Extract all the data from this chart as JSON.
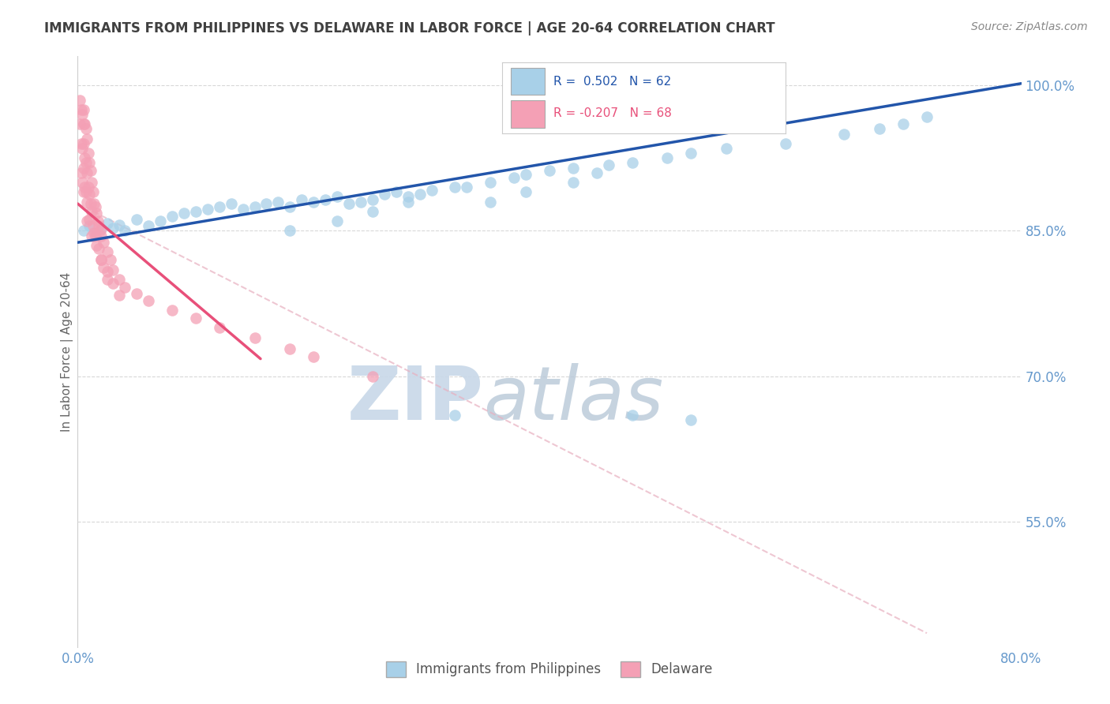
{
  "title": "IMMIGRANTS FROM PHILIPPINES VS DELAWARE IN LABOR FORCE | AGE 20-64 CORRELATION CHART",
  "source_text": "Source: ZipAtlas.com",
  "ylabel": "In Labor Force | Age 20-64",
  "x_min": 0.0,
  "x_max": 0.8,
  "y_min": 0.42,
  "y_max": 1.03,
  "x_ticks": [
    0.0,
    0.1,
    0.2,
    0.3,
    0.4,
    0.5,
    0.6,
    0.7,
    0.8
  ],
  "y_ticks": [
    0.55,
    0.7,
    0.85,
    1.0
  ],
  "y_tick_labels": [
    "55.0%",
    "70.0%",
    "85.0%",
    "100.0%"
  ],
  "blue_color": "#a8d0e8",
  "pink_color": "#f4a0b5",
  "blue_line_color": "#2255aa",
  "pink_line_color": "#e8507a",
  "dashed_line_color": "#e8b0c0",
  "watermark_color": "#c8d8e8",
  "title_color": "#404040",
  "axis_color": "#6699CC",
  "blue_scatter_x": [
    0.005,
    0.01,
    0.015,
    0.02,
    0.025,
    0.03,
    0.035,
    0.04,
    0.05,
    0.06,
    0.07,
    0.08,
    0.09,
    0.1,
    0.11,
    0.12,
    0.13,
    0.14,
    0.15,
    0.16,
    0.17,
    0.18,
    0.19,
    0.2,
    0.21,
    0.22,
    0.23,
    0.24,
    0.25,
    0.26,
    0.27,
    0.28,
    0.29,
    0.3,
    0.32,
    0.33,
    0.35,
    0.37,
    0.38,
    0.4,
    0.42,
    0.44,
    0.45,
    0.47,
    0.5,
    0.52,
    0.55,
    0.6,
    0.65,
    0.68,
    0.7,
    0.72,
    0.18,
    0.22,
    0.25,
    0.28,
    0.32,
    0.35,
    0.38,
    0.42,
    0.47,
    0.52
  ],
  "blue_scatter_y": [
    0.85,
    0.855,
    0.848,
    0.852,
    0.858,
    0.853,
    0.856,
    0.85,
    0.862,
    0.855,
    0.86,
    0.865,
    0.868,
    0.87,
    0.872,
    0.875,
    0.878,
    0.872,
    0.875,
    0.878,
    0.88,
    0.875,
    0.882,
    0.88,
    0.882,
    0.885,
    0.878,
    0.88,
    0.882,
    0.888,
    0.89,
    0.885,
    0.888,
    0.892,
    0.895,
    0.895,
    0.9,
    0.905,
    0.908,
    0.912,
    0.915,
    0.91,
    0.918,
    0.92,
    0.925,
    0.93,
    0.935,
    0.94,
    0.95,
    0.955,
    0.96,
    0.968,
    0.85,
    0.86,
    0.87,
    0.88,
    0.66,
    0.88,
    0.89,
    0.9,
    0.66,
    0.655
  ],
  "pink_scatter_x": [
    0.002,
    0.002,
    0.003,
    0.003,
    0.003,
    0.004,
    0.004,
    0.004,
    0.005,
    0.005,
    0.005,
    0.005,
    0.005,
    0.006,
    0.006,
    0.006,
    0.007,
    0.007,
    0.007,
    0.008,
    0.008,
    0.008,
    0.008,
    0.009,
    0.009,
    0.01,
    0.01,
    0.01,
    0.011,
    0.011,
    0.012,
    0.012,
    0.012,
    0.013,
    0.013,
    0.014,
    0.014,
    0.015,
    0.015,
    0.016,
    0.016,
    0.017,
    0.018,
    0.018,
    0.019,
    0.02,
    0.02,
    0.022,
    0.022,
    0.025,
    0.025,
    0.028,
    0.03,
    0.035,
    0.04,
    0.05,
    0.06,
    0.08,
    0.1,
    0.12,
    0.15,
    0.18,
    0.2,
    0.25,
    0.02,
    0.025,
    0.03,
    0.035
  ],
  "pink_scatter_y": [
    0.985,
    0.96,
    0.975,
    0.94,
    0.91,
    0.97,
    0.935,
    0.9,
    0.975,
    0.96,
    0.94,
    0.915,
    0.89,
    0.96,
    0.925,
    0.895,
    0.955,
    0.92,
    0.89,
    0.945,
    0.91,
    0.88,
    0.86,
    0.93,
    0.895,
    0.92,
    0.888,
    0.862,
    0.912,
    0.878,
    0.9,
    0.87,
    0.845,
    0.89,
    0.855,
    0.878,
    0.848,
    0.875,
    0.845,
    0.868,
    0.835,
    0.86,
    0.855,
    0.832,
    0.85,
    0.845,
    0.82,
    0.838,
    0.812,
    0.828,
    0.8,
    0.82,
    0.81,
    0.8,
    0.792,
    0.785,
    0.778,
    0.768,
    0.76,
    0.75,
    0.74,
    0.728,
    0.72,
    0.7,
    0.82,
    0.808,
    0.796,
    0.784
  ],
  "blue_trend_x": [
    0.0,
    0.8
  ],
  "blue_trend_y": [
    0.838,
    1.002
  ],
  "pink_trend_x": [
    0.0,
    0.155
  ],
  "pink_trend_y": [
    0.878,
    0.718
  ],
  "dashed_trend_x": [
    0.0,
    0.72
  ],
  "dashed_trend_y": [
    0.878,
    0.435
  ]
}
